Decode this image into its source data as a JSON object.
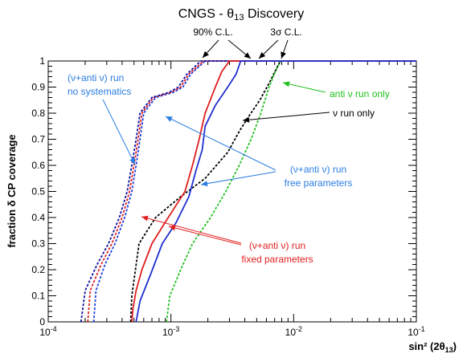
{
  "chart_data": {
    "type": "line",
    "title": "CNGS - θ13 Discovery",
    "xlabel": "sin² (2θ13)",
    "ylabel": "fraction δ CP coverage",
    "x_scale": "log",
    "xlim": [
      0.0001,
      0.1
    ],
    "ylim": [
      0,
      1
    ],
    "x_ticks": [
      {
        "value": 0.0001,
        "base": "10",
        "exp": "-4"
      },
      {
        "value": 0.001,
        "base": "10",
        "exp": "-3"
      },
      {
        "value": 0.01,
        "base": "10",
        "exp": "-2"
      },
      {
        "value": 0.1,
        "base": "10",
        "exp": "-1"
      }
    ],
    "y_ticks": [
      "0",
      "0.1",
      "0.2",
      "0.3",
      "0.4",
      "0.5",
      "0.6",
      "0.7",
      "0.8",
      "0.9",
      "1"
    ],
    "grid": false,
    "series": [
      {
        "name": "",
        "color": "#2040e0",
        "style": "dashed",
        "points": [
          [
            0.000235,
            0
          ],
          [
            0.000245,
            0.12
          ],
          [
            0.00029,
            0.22
          ],
          [
            0.00035,
            0.3
          ],
          [
            0.00042,
            0.4
          ],
          [
            0.00048,
            0.5
          ],
          [
            0.00052,
            0.6
          ],
          [
            0.00056,
            0.7
          ],
          [
            0.0006,
            0.8
          ],
          [
            0.00075,
            0.86
          ],
          [
            0.00105,
            0.88
          ],
          [
            0.00125,
            0.9
          ],
          [
            0.00145,
            0.95
          ],
          [
            0.0019,
            1
          ],
          [
            0.1,
            1
          ]
        ]
      },
      {
        "name": "",
        "color": "#e02020",
        "style": "dashed",
        "points": [
          [
            0.00021,
            0
          ],
          [
            0.00022,
            0.12
          ],
          [
            0.00027,
            0.22
          ],
          [
            0.00033,
            0.3
          ],
          [
            0.0004,
            0.4
          ],
          [
            0.00046,
            0.5
          ],
          [
            0.0005,
            0.6
          ],
          [
            0.00054,
            0.7
          ],
          [
            0.00058,
            0.8
          ],
          [
            0.00072,
            0.86
          ],
          [
            0.001,
            0.88
          ],
          [
            0.0012,
            0.9
          ],
          [
            0.0014,
            0.95
          ],
          [
            0.00185,
            1
          ],
          [
            0.1,
            1
          ]
        ]
      },
      {
        "name": "",
        "color": "#1010a0",
        "style": "dashed",
        "points": [
          [
            0.000185,
            0
          ],
          [
            0.0002,
            0.12
          ],
          [
            0.00025,
            0.22
          ],
          [
            0.00031,
            0.3
          ],
          [
            0.00038,
            0.4
          ],
          [
            0.00044,
            0.5
          ],
          [
            0.00048,
            0.6
          ],
          [
            0.00052,
            0.7
          ],
          [
            0.00056,
            0.8
          ],
          [
            0.0007,
            0.86
          ],
          [
            0.00097,
            0.88
          ],
          [
            0.00115,
            0.9
          ],
          [
            0.00135,
            0.95
          ],
          [
            0.00175,
            1
          ],
          [
            0.1,
            1
          ]
        ]
      },
      {
        "name": "",
        "color": "#000000",
        "style": "dashed",
        "points": [
          [
            0.00047,
            0
          ],
          [
            0.00048,
            0.1
          ],
          [
            0.00055,
            0.3
          ],
          [
            0.00075,
            0.4
          ],
          [
            0.0012,
            0.48
          ],
          [
            0.0019,
            0.55
          ],
          [
            0.0029,
            0.65
          ],
          [
            0.0036,
            0.73
          ],
          [
            0.0042,
            0.78
          ],
          [
            0.0053,
            0.85
          ],
          [
            0.0064,
            0.92
          ],
          [
            0.0074,
            0.98
          ],
          [
            0.0078,
            1
          ],
          [
            0.1,
            1
          ]
        ]
      },
      {
        "name": "",
        "color": "#20c020",
        "style": "dashed",
        "points": [
          [
            0.00092,
            0
          ],
          [
            0.00098,
            0.1
          ],
          [
            0.0012,
            0.2
          ],
          [
            0.0015,
            0.3
          ],
          [
            0.0021,
            0.4
          ],
          [
            0.0028,
            0.5
          ],
          [
            0.0036,
            0.6
          ],
          [
            0.0045,
            0.7
          ],
          [
            0.0054,
            0.8
          ],
          [
            0.0063,
            0.9
          ],
          [
            0.0071,
            0.96
          ],
          [
            0.0078,
            1
          ],
          [
            0.1,
            1
          ]
        ]
      },
      {
        "name": "",
        "color": "#e02020",
        "style": "solid",
        "points": [
          [
            0.00048,
            0
          ],
          [
            0.00049,
            0.05
          ],
          [
            0.00052,
            0.12
          ],
          [
            0.00058,
            0.2
          ],
          [
            0.0007,
            0.3
          ],
          [
            0.00095,
            0.4
          ],
          [
            0.0013,
            0.5
          ],
          [
            0.0015,
            0.6
          ],
          [
            0.0017,
            0.7
          ],
          [
            0.0019,
            0.8
          ],
          [
            0.0023,
            0.9
          ],
          [
            0.0026,
            0.96
          ],
          [
            0.003,
            1
          ],
          [
            0.1,
            1
          ]
        ]
      },
      {
        "name": "",
        "color": "#2030d0",
        "style": "solid",
        "points": [
          [
            0.00052,
            0
          ],
          [
            0.00056,
            0.08
          ],
          [
            0.00068,
            0.18
          ],
          [
            0.00085,
            0.3
          ],
          [
            0.0011,
            0.38
          ],
          [
            0.0014,
            0.48
          ],
          [
            0.0016,
            0.58
          ],
          [
            0.0018,
            0.66
          ],
          [
            0.0019,
            0.75
          ],
          [
            0.0023,
            0.83
          ],
          [
            0.0029,
            0.9
          ],
          [
            0.0034,
            0.95
          ],
          [
            0.0037,
            1
          ],
          [
            0.1,
            1
          ]
        ]
      }
    ],
    "annotations": [
      {
        "lines": [
          "90% C.L."
        ],
        "color": "#000000"
      },
      {
        "lines": [
          "3σ C.L."
        ],
        "color": "#000000"
      },
      {
        "lines": [
          "(ν+anti ν) run",
          "no systematics"
        ],
        "color": "#2a7de1"
      },
      {
        "lines": [
          "anti ν run only"
        ],
        "color": "#20c020"
      },
      {
        "lines": [
          "ν run only"
        ],
        "color": "#000000"
      },
      {
        "lines": [
          "(ν+anti ν) run",
          "free parameters"
        ],
        "color": "#2a7de1"
      },
      {
        "lines": [
          "(ν+anti ν) run",
          "fixed parameters"
        ],
        "color": "#e02020"
      }
    ]
  }
}
